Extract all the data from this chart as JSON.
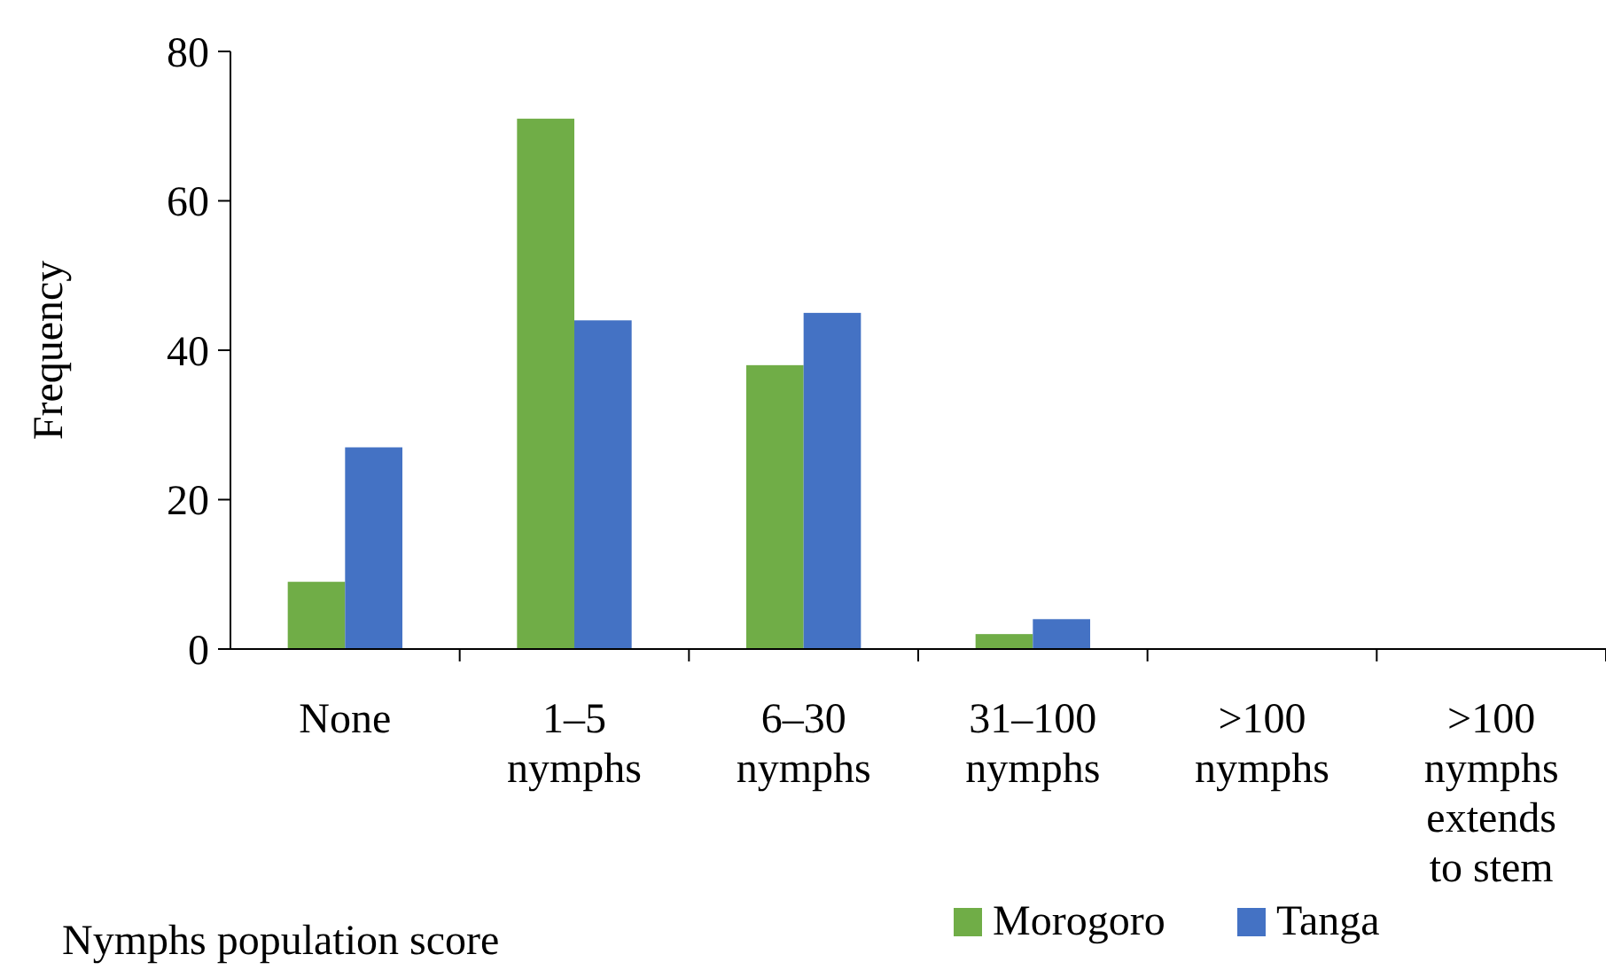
{
  "chart_data": {
    "type": "bar",
    "xlabel": "Nymphs population score",
    "ylabel": "Frequency",
    "categories": [
      "None",
      "1–5 nymphs",
      "6–30 nymphs",
      "31–100 nymphs",
      ">100 nymphs",
      ">100 nymphs extends to stem"
    ],
    "series": [
      {
        "name": "Morogoro",
        "color": "#70ad47",
        "values": [
          9,
          71,
          38,
          2,
          0,
          0
        ]
      },
      {
        "name": "Tanga",
        "color": "#4472c4",
        "values": [
          27,
          44,
          45,
          4,
          0,
          0
        ]
      }
    ],
    "ylim": [
      0,
      80
    ],
    "yticks": [
      0,
      20,
      40,
      60,
      80
    ],
    "grid": false,
    "legend": "bottom"
  }
}
